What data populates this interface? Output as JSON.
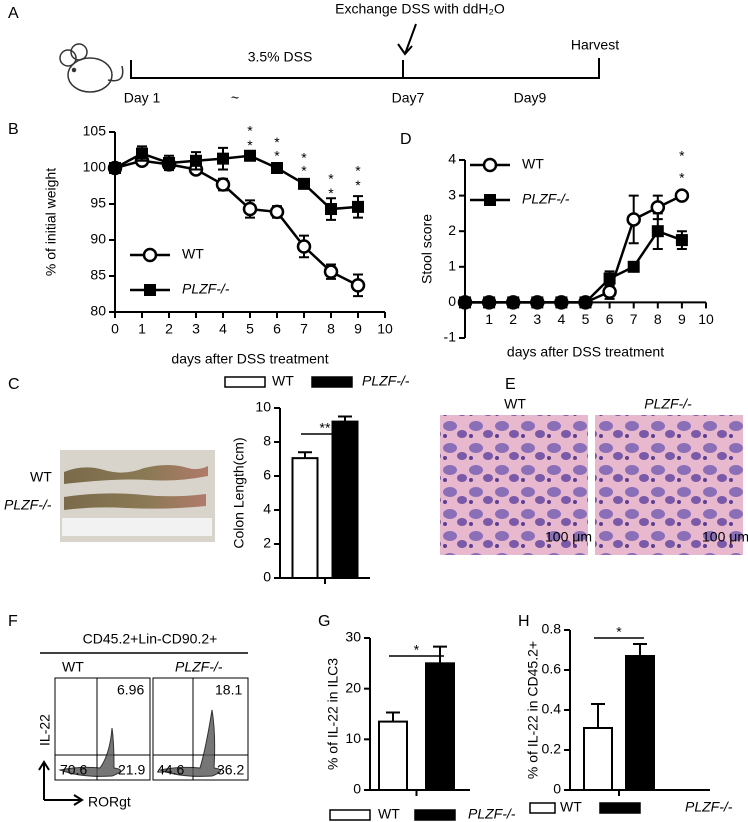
{
  "timeline": {
    "panel": "A",
    "top_label": "Exchange DSS with ddH₂O",
    "phase": "3.5% DSS",
    "end": "Harvest",
    "days": [
      "Day 1",
      "~",
      "Day7",
      "Day9"
    ]
  },
  "colon_photo": {
    "panel": "C",
    "labels": [
      "WT",
      "PLZF-/-"
    ]
  },
  "histology": {
    "panel": "E",
    "titles": [
      "WT",
      "PLZF-/-"
    ],
    "scale_bars": [
      "100 μm",
      "100 μm"
    ]
  },
  "flow": {
    "panel": "F",
    "gate": "CD45.2+Lin-CD90.2+",
    "y_axis": "IL-22",
    "x_axis": "RORgt",
    "plots": [
      {
        "title": "WT",
        "upper_right": 6.96,
        "lower_left": 70.6,
        "lower_right": 21.9
      },
      {
        "title": "PLZF-/-",
        "upper_right": 18.1,
        "lower_left": 44.6,
        "lower_right": 36.2
      }
    ]
  },
  "chart_data": [
    {
      "type": "line",
      "panel": "B",
      "y_label": "% of initial weight",
      "x_label": "days after DSS treatment",
      "xlim": [
        0,
        10
      ],
      "xticks": [
        0,
        1,
        2,
        3,
        4,
        5,
        6,
        7,
        8,
        9,
        10
      ],
      "ylim": [
        80,
        105
      ],
      "yticks": [
        80,
        85,
        90,
        95,
        100,
        105
      ],
      "x": [
        0,
        1,
        2,
        3,
        4,
        5,
        6,
        7,
        8,
        9
      ],
      "series": [
        {
          "name": "WT",
          "color": "#000000",
          "marker": "circle",
          "values": [
            100,
            101,
            100.5,
            99.8,
            97.7,
            94.3,
            93.9,
            89.1,
            85.6,
            83.7
          ],
          "errors": [
            0,
            0.5,
            0.5,
            0.5,
            0.8,
            1.2,
            0.8,
            1.5,
            1,
            1.5
          ]
        },
        {
          "name": "PLZF-/-",
          "color": "#000000",
          "marker": "square",
          "values": [
            100,
            102,
            100.7,
            101,
            101.3,
            101.7,
            100,
            97.8,
            94.3,
            94.6
          ],
          "errors": [
            0,
            1,
            1,
            1.2,
            1.5,
            0.5,
            0.5,
            0.5,
            1.5,
            1.5
          ]
        }
      ],
      "annotations": [
        {
          "x": 5,
          "y": 105.6,
          "text": "*"
        },
        {
          "x": 5,
          "y": 103.6,
          "text": "*"
        },
        {
          "x": 6,
          "y": 104,
          "text": "*"
        },
        {
          "x": 6,
          "y": 102.1,
          "text": "*"
        },
        {
          "x": 7,
          "y": 101.8,
          "text": "*"
        },
        {
          "x": 7,
          "y": 100,
          "text": "*"
        },
        {
          "x": 8,
          "y": 98.9,
          "text": "*"
        },
        {
          "x": 8,
          "y": 96.9,
          "text": "*"
        },
        {
          "x": 9,
          "y": 100,
          "text": "*"
        },
        {
          "x": 9,
          "y": 98,
          "text": "*"
        }
      ]
    },
    {
      "type": "line",
      "panel": "D",
      "y_label": "Stool score",
      "x_label": "days after DSS treatment",
      "xlim": [
        0,
        10
      ],
      "xticks": [
        1,
        2,
        3,
        4,
        5,
        6,
        7,
        8,
        9,
        10
      ],
      "ylim": [
        -1,
        4
      ],
      "yticks": [
        -1,
        0,
        1,
        2,
        3,
        4
      ],
      "x": [
        0,
        1,
        2,
        3,
        4,
        5,
        6,
        7,
        8,
        9
      ],
      "series": [
        {
          "name": "WT",
          "color": "#000000",
          "marker": "circle",
          "values": [
            0,
            0,
            0,
            0,
            0,
            0,
            0.3,
            2.33,
            2.67,
            3
          ],
          "errors": [
            0,
            0,
            0,
            0,
            0,
            0,
            0.2,
            0.67,
            0.33,
            0
          ]
        },
        {
          "name": "PLZF-/-",
          "color": "#000000",
          "marker": "square",
          "values": [
            0,
            0,
            0,
            0,
            0,
            0,
            0.67,
            1,
            2,
            1.75
          ],
          "errors": [
            0,
            0,
            0,
            0,
            0,
            0,
            0.2,
            0,
            0.5,
            0.25
          ]
        }
      ],
      "annotations": [
        {
          "x": 9,
          "y": 4.2,
          "text": "*"
        },
        {
          "x": 9,
          "y": 3.58,
          "text": "*"
        }
      ]
    },
    {
      "type": "bar",
      "y_label": "Colon Length(cm)",
      "ylim": [
        0,
        10
      ],
      "yticks": [
        0,
        2,
        4,
        6,
        8,
        10
      ],
      "significance": "**",
      "series": [
        {
          "name": "WT",
          "color": "#ffffff",
          "values": [
            7.05
          ],
          "errors": [
            0.35
          ]
        },
        {
          "name": "PLZF-/-",
          "color": "#000000",
          "values": [
            9.2
          ],
          "errors": [
            0.3
          ]
        }
      ]
    },
    {
      "type": "bar",
      "panel": "G",
      "y_label": "% of IL-22 in ILC3",
      "ylim": [
        0,
        30
      ],
      "yticks": [
        0,
        10,
        20,
        30
      ],
      "significance": "*",
      "series": [
        {
          "name": "WT",
          "color": "#ffffff",
          "values": [
            13.5
          ],
          "errors": [
            1.8
          ]
        },
        {
          "name": "PLZF-/-",
          "color": "#000000",
          "values": [
            25
          ],
          "errors": [
            3.3
          ]
        }
      ]
    },
    {
      "type": "bar",
      "panel": "H",
      "y_label": "% of IL-22 in CD45.2+",
      "ylim": [
        0,
        0.8
      ],
      "yticks": [
        0,
        0.2,
        0.4,
        0.6,
        0.8
      ],
      "significance": "*",
      "series": [
        {
          "name": "WT",
          "color": "#ffffff",
          "values": [
            0.31
          ],
          "errors": [
            0.12
          ]
        },
        {
          "name": "PLZF-/-",
          "color": "#000000",
          "values": [
            0.67
          ],
          "errors": [
            0.06
          ]
        }
      ]
    }
  ]
}
